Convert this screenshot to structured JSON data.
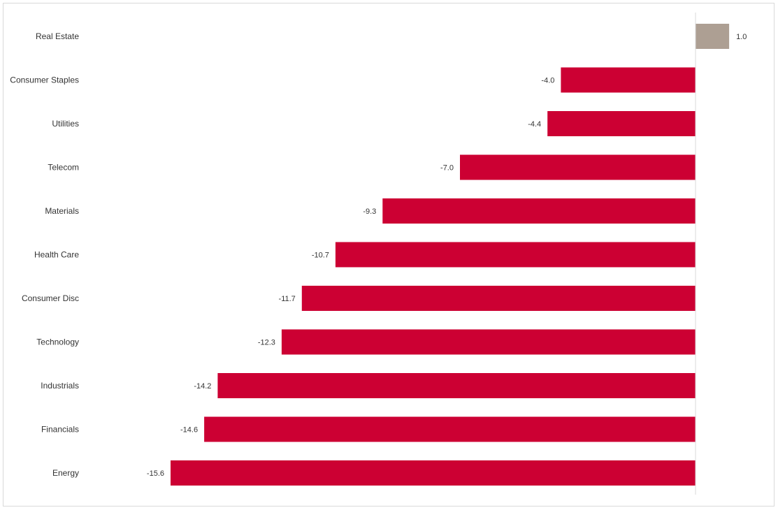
{
  "chart_data": {
    "type": "bar",
    "orientation": "horizontal",
    "title": "",
    "xlabel": "",
    "ylabel": "",
    "categories": [
      "Real Estate",
      "Consumer Staples",
      "Utilities",
      "Telecom",
      "Materials",
      "Health Care",
      "Consumer Disc",
      "Technology",
      "Industrials",
      "Financials",
      "Energy"
    ],
    "values": [
      1.0,
      -4.0,
      -4.4,
      -7.0,
      -9.3,
      -10.7,
      -11.7,
      -12.3,
      -14.2,
      -14.6,
      -15.6
    ],
    "value_labels": [
      "1.0",
      "-4.0",
      "-4.4",
      "-7.0",
      "-9.3",
      "-10.7",
      "-11.7",
      "-12.3",
      "-14.2",
      "-14.6",
      "-15.6"
    ],
    "xlim": [
      -15.6,
      1.0
    ],
    "grid": false,
    "legend": "none",
    "colors": {
      "positive": "#ad9f93",
      "negative": "#cc0033",
      "axis": "#d9d9d9",
      "text": "#333333"
    }
  }
}
